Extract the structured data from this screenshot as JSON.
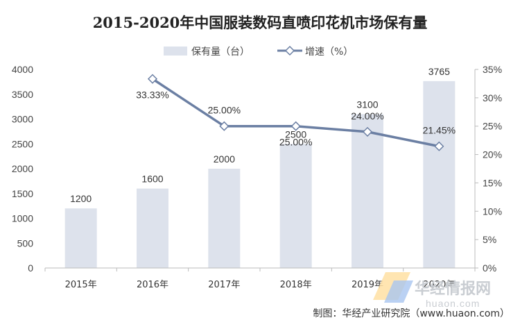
{
  "chart_data": {
    "type": "bar",
    "title": "2015-2020年中国服装数码直喷印花机市场保有量",
    "categories": [
      "2015年",
      "2016年",
      "2017年",
      "2018年",
      "2019年",
      "2020年"
    ],
    "series": [
      {
        "name": "保有量（台）",
        "type": "bar",
        "axis": "left",
        "values": [
          1200,
          1600,
          2000,
          2500,
          3100,
          3765
        ],
        "labels": [
          "1200",
          "1600",
          "2000",
          "2500",
          "3100",
          "3765"
        ],
        "color": "#dde2ec"
      },
      {
        "name": "增速（%）",
        "type": "line",
        "axis": "right",
        "values": [
          null,
          33.33,
          25.0,
          25.0,
          24.0,
          21.45
        ],
        "labels": [
          "",
          "33.33%",
          "25.00%",
          "25.00%",
          "24.00%",
          "21.45%"
        ],
        "color": "#6b7fa3"
      }
    ],
    "ylim_left": [
      0,
      4000
    ],
    "left_ticks": [
      "0",
      "500",
      "1000",
      "1500",
      "2000",
      "2500",
      "3000",
      "3500",
      "4000"
    ],
    "ylim_right": [
      0,
      35
    ],
    "right_ticks": [
      "0%",
      "5%",
      "10%",
      "15%",
      "20%",
      "25%",
      "30%",
      "35%"
    ],
    "grid": false,
    "legend_position": "top-center"
  },
  "credit": "制图：华经产业研究院（www.huaon.com）",
  "watermark": {
    "main": "华经情报网",
    "sub": "huaon.com"
  }
}
